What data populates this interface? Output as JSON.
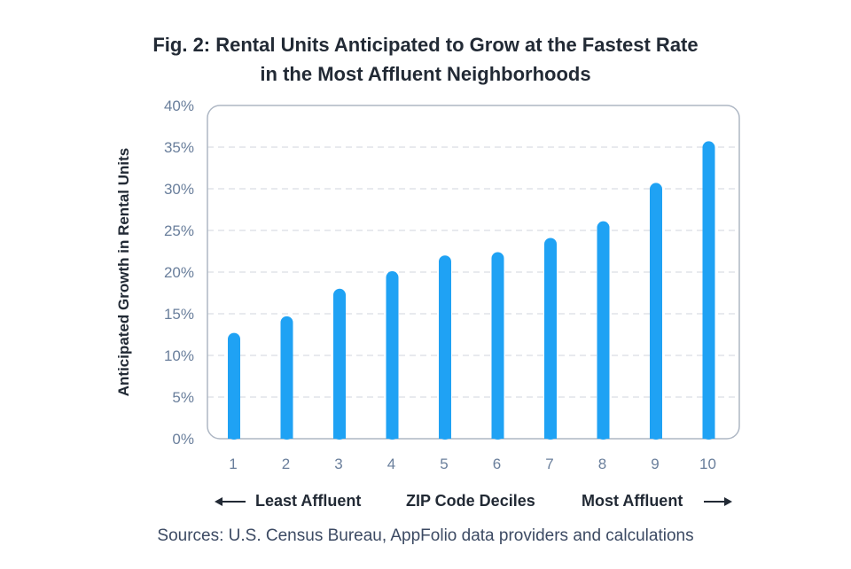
{
  "title_line1": "Fig. 2: Rental Units Anticipated to Grow at the Fastest Rate",
  "title_line2": "in the Most Affluent Neighborhoods",
  "footer": {
    "left_label": "Least Affluent",
    "center_label": "ZIP Code Deciles",
    "right_label": "Most Affluent"
  },
  "source": "Sources: U.S. Census Bureau, AppFolio data providers and calculations",
  "colors": {
    "bar": "#1fa2f4",
    "tick_text": "#6a7f9c",
    "grid": "#d9dde3",
    "frame": "#aeb7c4"
  },
  "chart_data": {
    "type": "bar",
    "title": "Fig. 2: Rental Units Anticipated to Grow at the Fastest Rate in the Most Affluent Neighborhoods",
    "xlabel": "ZIP Code Deciles",
    "ylabel": "Anticipated Growth in Rental Units",
    "categories": [
      "1",
      "2",
      "3",
      "4",
      "5",
      "6",
      "7",
      "8",
      "9",
      "10"
    ],
    "values": [
      12.7,
      14.7,
      18.0,
      20.1,
      22.0,
      22.4,
      24.1,
      26.1,
      30.7,
      35.7
    ],
    "ylim": [
      0,
      40
    ],
    "yticks": [
      "0%",
      "5%",
      "10%",
      "15%",
      "20%",
      "25%",
      "30%",
      "35%",
      "40%"
    ],
    "grid": true,
    "legend": "none"
  }
}
